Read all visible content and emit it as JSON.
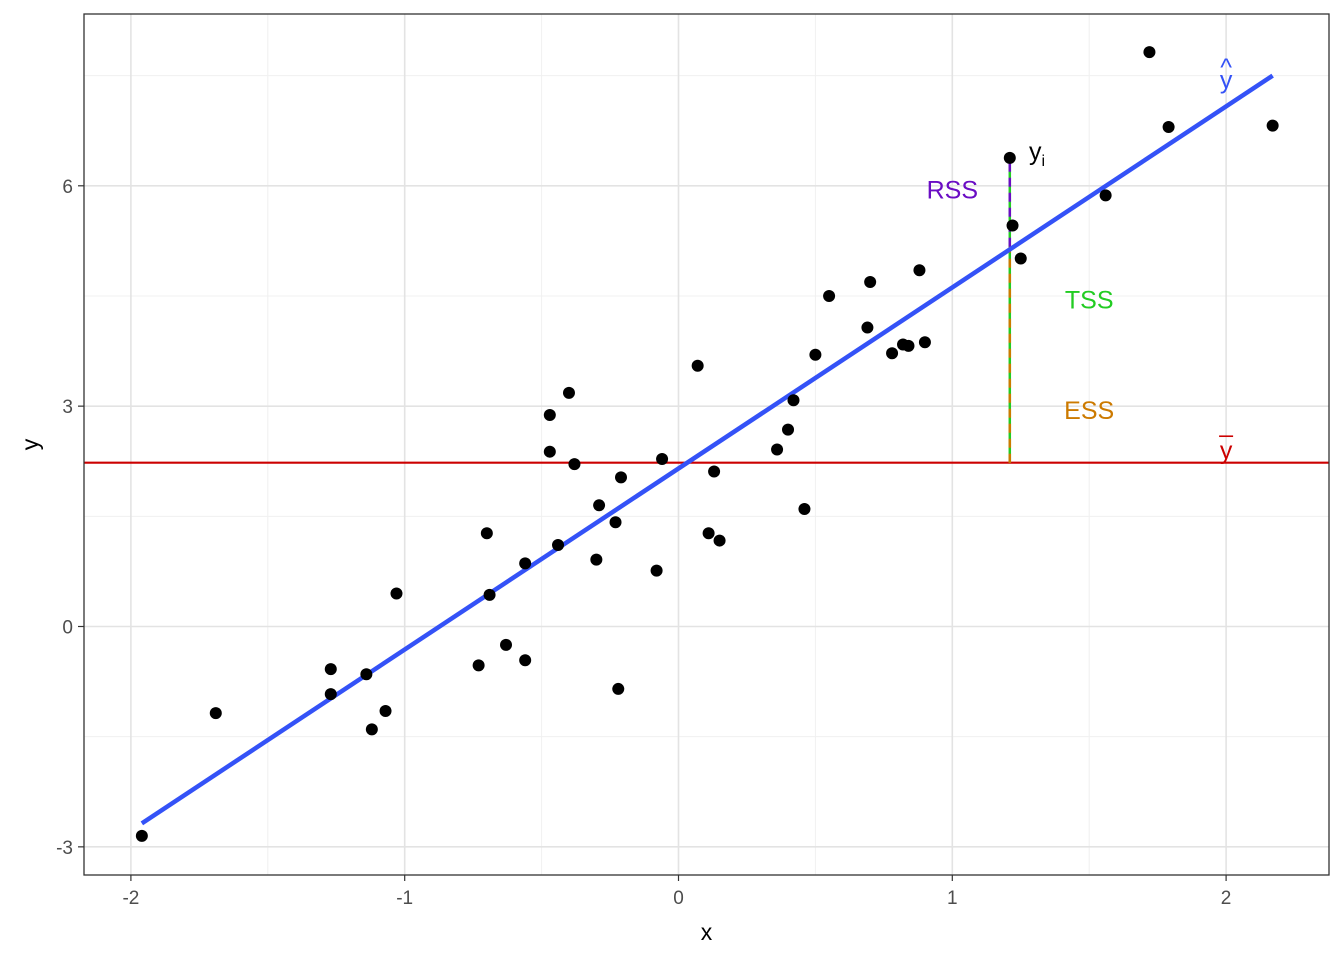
{
  "chart_data": {
    "type": "scatter",
    "xlabel": "x",
    "ylabel": "y",
    "xlim": [
      -2.2,
      2.32
    ],
    "ylim": [
      -3.4,
      8.3
    ],
    "x_ticks": [
      -2,
      -1,
      0,
      1,
      2
    ],
    "y_ticks": [
      -3,
      0,
      3,
      6
    ],
    "x_tick_labels": [
      "-2",
      "-1",
      "0",
      "1",
      "2"
    ],
    "y_tick_labels": [
      "-3",
      "0",
      "3",
      "6"
    ],
    "grid": true,
    "points": [
      {
        "x": -1.96,
        "y": -2.85
      },
      {
        "x": -1.69,
        "y": -1.18
      },
      {
        "x": -1.27,
        "y": -0.58
      },
      {
        "x": -1.27,
        "y": -0.92
      },
      {
        "x": -1.14,
        "y": -0.65
      },
      {
        "x": -1.12,
        "y": -1.4
      },
      {
        "x": -1.07,
        "y": -1.15
      },
      {
        "x": -1.03,
        "y": 0.45
      },
      {
        "x": -0.73,
        "y": -0.53
      },
      {
        "x": -0.7,
        "y": 1.27
      },
      {
        "x": -0.69,
        "y": 0.43
      },
      {
        "x": -0.63,
        "y": -0.25
      },
      {
        "x": -0.56,
        "y": 0.86
      },
      {
        "x": -0.56,
        "y": -0.46
      },
      {
        "x": -0.47,
        "y": 2.88
      },
      {
        "x": -0.47,
        "y": 2.38
      },
      {
        "x": -0.44,
        "y": 1.11
      },
      {
        "x": -0.4,
        "y": 3.18
      },
      {
        "x": -0.38,
        "y": 2.21
      },
      {
        "x": -0.3,
        "y": 0.91
      },
      {
        "x": -0.29,
        "y": 1.65
      },
      {
        "x": -0.23,
        "y": 1.42
      },
      {
        "x": -0.21,
        "y": 2.03
      },
      {
        "x": -0.22,
        "y": -0.85
      },
      {
        "x": -0.08,
        "y": 0.76
      },
      {
        "x": -0.06,
        "y": 2.28
      },
      {
        "x": 0.07,
        "y": 3.55
      },
      {
        "x": 0.11,
        "y": 1.27
      },
      {
        "x": 0.13,
        "y": 2.11
      },
      {
        "x": 0.15,
        "y": 1.17
      },
      {
        "x": 0.36,
        "y": 2.41
      },
      {
        "x": 0.4,
        "y": 2.68
      },
      {
        "x": 0.42,
        "y": 3.08
      },
      {
        "x": 0.46,
        "y": 1.6
      },
      {
        "x": 0.5,
        "y": 3.7
      },
      {
        "x": 0.55,
        "y": 4.5
      },
      {
        "x": 0.69,
        "y": 4.07
      },
      {
        "x": 0.7,
        "y": 4.69
      },
      {
        "x": 0.78,
        "y": 3.72
      },
      {
        "x": 0.82,
        "y": 3.84
      },
      {
        "x": 0.84,
        "y": 3.82
      },
      {
        "x": 0.88,
        "y": 4.85
      },
      {
        "x": 0.9,
        "y": 3.87
      },
      {
        "x": 1.21,
        "y": 6.38
      },
      {
        "x": 1.22,
        "y": 5.46
      },
      {
        "x": 1.25,
        "y": 5.01
      },
      {
        "x": 1.56,
        "y": 5.87
      },
      {
        "x": 1.72,
        "y": 7.82
      },
      {
        "x": 1.79,
        "y": 6.8
      },
      {
        "x": 2.17,
        "y": 6.82
      }
    ],
    "regression_line": {
      "x": [
        -1.96,
        2.17
      ],
      "y": [
        -2.68,
        7.5
      ],
      "color": "#3452f7"
    },
    "mean_line": {
      "y": 2.23,
      "color": "#cc0000"
    },
    "highlight_point": {
      "x": 1.21,
      "y": 6.38,
      "fitted": 5.17
    },
    "segments_colors": {
      "rss": "#6a0dc4",
      "tss": "#22cc22",
      "ess": "#cc7a00"
    },
    "annotations": {
      "yi_base": "y",
      "yi_sub": "i",
      "rss": "RSS",
      "tss": "TSS",
      "ess": "ESS",
      "yhat": "y",
      "yhat_mark": "^",
      "ybar": "y"
    },
    "annotation_positions_data": {
      "rss": [
        1.0,
        5.95
      ],
      "tss": [
        1.5,
        4.45
      ],
      "ess": [
        1.5,
        2.95
      ],
      "yhat": [
        2.0,
        7.45
      ],
      "ybar": [
        2.0,
        2.4
      ],
      "yi": [
        1.28,
        6.35
      ]
    }
  }
}
